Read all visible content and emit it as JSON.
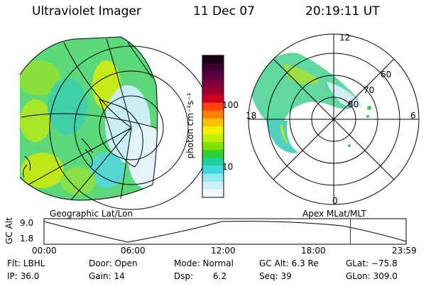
{
  "header": {
    "title": "Ultraviolet Imager",
    "date": "11 Dec 07",
    "time": "20:19:11 UT"
  },
  "colorbar": {
    "label": "photon cm⁻²s⁻¹",
    "ticks": [
      "100",
      "10"
    ],
    "colors": [
      "#1a0010",
      "#3a0030",
      "#5a0040",
      "#7a0040",
      "#a00030",
      "#d00020",
      "#ff4010",
      "#ff8000",
      "#ffc000",
      "#f0f000",
      "#c0f000",
      "#80e000",
      "#30d030",
      "#20d0a0",
      "#40d8e0",
      "#90e8f0",
      "#d0f0f8",
      "#f4f8fc"
    ]
  },
  "left_panel": {
    "label": "Geographic Lat/Lon"
  },
  "right_panel": {
    "label": "Apex MLat/MLT",
    "mlt_labels": [
      "12",
      "6",
      "18",
      "0"
    ],
    "lat_labels": [
      "60",
      "70",
      "80"
    ]
  },
  "altitude_plot": {
    "ylabel": "GC Alt",
    "yticks": [
      "9.0",
      "1.8"
    ],
    "xticks": [
      "00:00",
      "06:00",
      "12:00",
      "18:00",
      "23:59"
    ],
    "current_time_fraction": 0.846,
    "marker_color": "#c00000"
  },
  "info": {
    "flt": "Flt: LBHL",
    "ip": "IP: 36.0",
    "door": "Door: Open",
    "gain": "Gain: 14",
    "mode": "Mode: Normal",
    "dsp_label": "Dsp:",
    "dsp_value": "6.2",
    "gcalt": "GC Alt: 6.3 Re",
    "seq": "Seq: 39",
    "glat": "GLat: −75.8",
    "glon": "GLon: 309.0"
  }
}
